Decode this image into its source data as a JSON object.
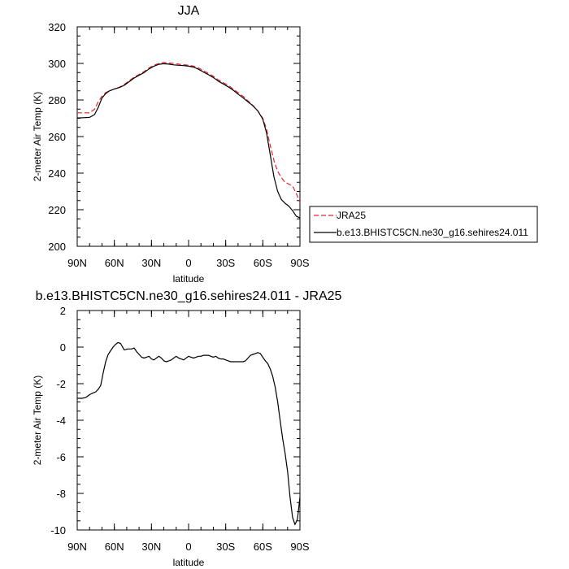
{
  "chart_data": [
    {
      "type": "line",
      "title": "JJA",
      "xlabel": "latitude",
      "ylabel": "2-meter Air Temp (K)",
      "xlim": [
        90,
        -90
      ],
      "ylim": [
        200,
        320
      ],
      "xticks": [
        90,
        60,
        30,
        0,
        -30,
        -60,
        -90
      ],
      "xtick_labels": [
        "90N",
        "60N",
        "30N",
        "0",
        "30S",
        "60S",
        "90S"
      ],
      "yticks": [
        200,
        220,
        240,
        260,
        280,
        300,
        320
      ],
      "ytick_labels": [
        "200",
        "220",
        "240",
        "260",
        "280",
        "300",
        "320"
      ],
      "legend_position": "outside-right",
      "series": [
        {
          "name": "JRA25",
          "color": "#e8222a",
          "dashed": true,
          "x": [
            90,
            85,
            80,
            76,
            73,
            70,
            67,
            64,
            60,
            56,
            52,
            48,
            44,
            40,
            36,
            32,
            28,
            24,
            20,
            16,
            12,
            8,
            4,
            0,
            -4,
            -8,
            -12,
            -16,
            -20,
            -24,
            -28,
            -32,
            -36,
            -40,
            -44,
            -48,
            -52,
            -56,
            -60,
            -63,
            -66,
            -69,
            -72,
            -75,
            -78,
            -81,
            -84,
            -87,
            -90
          ],
          "y": [
            273,
            273,
            273,
            275,
            279,
            282,
            284,
            285,
            286,
            287,
            288.5,
            290.5,
            292.5,
            294,
            295.5,
            297.5,
            299,
            300,
            300.5,
            300.2,
            300,
            299.6,
            299.3,
            299,
            298.5,
            297.5,
            296,
            294.5,
            293,
            291,
            289.5,
            288,
            286,
            284,
            282,
            279.5,
            277,
            274,
            270,
            264,
            255,
            247,
            241,
            237.5,
            235,
            234,
            233,
            229,
            224
          ]
        },
        {
          "name": "b.e13.BHISTC5CN.ne30_g16.sehires24.011",
          "color": "#000000",
          "dashed": false,
          "x": [
            90,
            85,
            80,
            76,
            73,
            70,
            67,
            64,
            60,
            56,
            52,
            48,
            44,
            40,
            36,
            32,
            28,
            24,
            20,
            16,
            12,
            8,
            4,
            0,
            -4,
            -8,
            -12,
            -16,
            -20,
            -24,
            -28,
            -32,
            -36,
            -40,
            -44,
            -48,
            -52,
            -56,
            -60,
            -63,
            -66,
            -69,
            -72,
            -75,
            -78,
            -81,
            -84,
            -87,
            -90
          ],
          "y": [
            270.2,
            270.3,
            270.5,
            272,
            276,
            281,
            283.5,
            285,
            286,
            286.8,
            288,
            290,
            292,
            293.5,
            295,
            297,
            298.5,
            299.5,
            299.8,
            299.6,
            299.2,
            299,
            298.8,
            298.5,
            298,
            296.8,
            295.3,
            293.8,
            292.3,
            290.3,
            288.8,
            287.2,
            285.4,
            283.2,
            281.2,
            279,
            276.8,
            274,
            269.5,
            262,
            250,
            238,
            230,
            225.5,
            223.5,
            222,
            219.5,
            216.5,
            215.5
          ]
        }
      ]
    },
    {
      "type": "line",
      "title": "b.e13.BHISTC5CN.ne30_g16.sehires24.011 - JRA25",
      "xlabel": "latitude",
      "ylabel": "2-meter Air Temp (K)",
      "xlim": [
        90,
        -90
      ],
      "ylim": [
        -10,
        2
      ],
      "xticks": [
        90,
        60,
        30,
        0,
        -30,
        -60,
        -90
      ],
      "xtick_labels": [
        "90N",
        "60N",
        "30N",
        "0",
        "30S",
        "60S",
        "90S"
      ],
      "yticks": [
        -10,
        -8,
        -6,
        -4,
        -2,
        0,
        2
      ],
      "ytick_labels": [
        "-10",
        "-8",
        "-6",
        "-4",
        "-2",
        "0",
        "2"
      ],
      "series": [
        {
          "color": "#000000",
          "dashed": false,
          "x": [
            90,
            86,
            83,
            80,
            77,
            75,
            73,
            71,
            69,
            67,
            65,
            63,
            61,
            59,
            57,
            55,
            52,
            49,
            46,
            44,
            42,
            40,
            38,
            36,
            34,
            32,
            30,
            28,
            26,
            24,
            22,
            20,
            18,
            16,
            14,
            12,
            10,
            8,
            6,
            4,
            2,
            0,
            -2,
            -4,
            -6,
            -8,
            -10,
            -12,
            -14,
            -16,
            -18,
            -20,
            -22,
            -24,
            -26,
            -28,
            -30,
            -32,
            -34,
            -36,
            -38,
            -40,
            -42,
            -44,
            -46,
            -48,
            -50,
            -52,
            -54,
            -56,
            -58,
            -60,
            -62,
            -64,
            -66,
            -68,
            -70,
            -72,
            -74,
            -76,
            -78,
            -80,
            -82,
            -84,
            -86,
            -88,
            -90
          ],
          "y": [
            -2.8,
            -2.8,
            -2.75,
            -2.6,
            -2.5,
            -2.45,
            -2.3,
            -2.1,
            -1.4,
            -0.8,
            -0.4,
            -0.2,
            0.0,
            0.15,
            0.25,
            0.2,
            -0.15,
            -0.1,
            -0.1,
            -0.05,
            -0.25,
            -0.4,
            -0.55,
            -0.6,
            -0.55,
            -0.5,
            -0.65,
            -0.7,
            -0.6,
            -0.5,
            -0.6,
            -0.75,
            -0.8,
            -0.75,
            -0.7,
            -0.6,
            -0.5,
            -0.6,
            -0.65,
            -0.7,
            -0.6,
            -0.5,
            -0.55,
            -0.6,
            -0.55,
            -0.5,
            -0.5,
            -0.45,
            -0.45,
            -0.45,
            -0.5,
            -0.55,
            -0.5,
            -0.6,
            -0.65,
            -0.65,
            -0.7,
            -0.75,
            -0.8,
            -0.8,
            -0.8,
            -0.8,
            -0.8,
            -0.8,
            -0.75,
            -0.6,
            -0.45,
            -0.4,
            -0.35,
            -0.3,
            -0.35,
            -0.55,
            -0.75,
            -0.9,
            -1.2,
            -1.6,
            -2.2,
            -3.0,
            -4.0,
            -5.0,
            -5.8,
            -6.8,
            -8.2,
            -9.3,
            -9.7,
            -9.4,
            -8.2
          ]
        }
      ]
    }
  ]
}
